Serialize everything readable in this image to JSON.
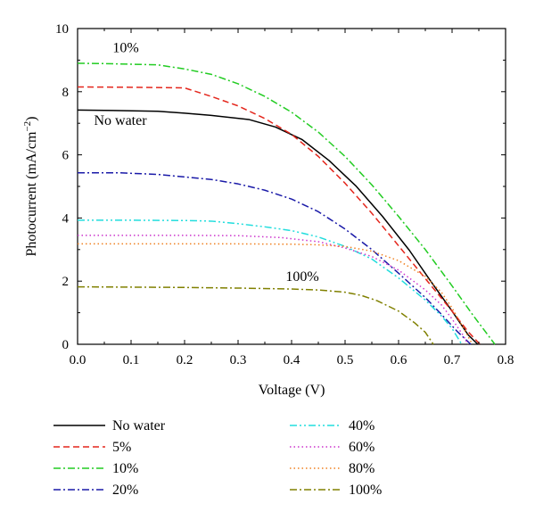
{
  "chart_data": {
    "type": "line",
    "xlabel": "Voltage (V)",
    "ylabel_main": "Photocurrent (mA/cm",
    "ylabel_sup": "−2",
    "ylabel_close": ")",
    "xlim": [
      0,
      0.8
    ],
    "ylim": [
      0,
      10
    ],
    "xticks": [
      0.0,
      0.1,
      0.2,
      0.3,
      0.4,
      0.5,
      0.6,
      0.7,
      0.8
    ],
    "xtick_labels": [
      "0.0",
      "0.1",
      "0.2",
      "0.3",
      "0.4",
      "0.5",
      "0.6",
      "0.7",
      "0.8"
    ],
    "yticks": [
      0,
      2,
      4,
      6,
      8,
      10
    ],
    "ytick_labels": [
      "0",
      "2",
      "4",
      "6",
      "8",
      "10"
    ],
    "grid": false,
    "legend_position": "bottom",
    "annotations": [
      {
        "text": "10%",
        "x": 0.09,
        "y": 9.25
      },
      {
        "text": "No water",
        "x": 0.08,
        "y": 6.95
      },
      {
        "text": "100%",
        "x": 0.42,
        "y": 2.0
      }
    ],
    "series": [
      {
        "name": "No water",
        "color": "#000000",
        "dash": "solid",
        "points": [
          [
            0,
            7.42
          ],
          [
            0.05,
            7.41
          ],
          [
            0.15,
            7.38
          ],
          [
            0.2,
            7.32
          ],
          [
            0.25,
            7.25
          ],
          [
            0.32,
            7.12
          ],
          [
            0.37,
            6.88
          ],
          [
            0.42,
            6.48
          ],
          [
            0.47,
            5.82
          ],
          [
            0.52,
            5.02
          ],
          [
            0.57,
            4.05
          ],
          [
            0.62,
            2.98
          ],
          [
            0.66,
            2.0
          ],
          [
            0.7,
            1.05
          ],
          [
            0.73,
            0.3
          ],
          [
            0.748,
            0
          ]
        ]
      },
      {
        "name": "5%",
        "color": "#e4261c",
        "dash": "dashed",
        "points": [
          [
            0,
            8.15
          ],
          [
            0.1,
            8.14
          ],
          [
            0.2,
            8.12
          ],
          [
            0.25,
            7.85
          ],
          [
            0.3,
            7.55
          ],
          [
            0.35,
            7.15
          ],
          [
            0.4,
            6.65
          ],
          [
            0.45,
            5.95
          ],
          [
            0.5,
            5.1
          ],
          [
            0.55,
            4.15
          ],
          [
            0.6,
            3.12
          ],
          [
            0.65,
            2.08
          ],
          [
            0.7,
            1.05
          ],
          [
            0.73,
            0.4
          ],
          [
            0.752,
            0
          ]
        ]
      },
      {
        "name": "10%",
        "color": "#22cc22",
        "dash": "dashdot",
        "points": [
          [
            0,
            8.9
          ],
          [
            0.05,
            8.89
          ],
          [
            0.15,
            8.85
          ],
          [
            0.2,
            8.72
          ],
          [
            0.25,
            8.55
          ],
          [
            0.3,
            8.25
          ],
          [
            0.35,
            7.85
          ],
          [
            0.4,
            7.35
          ],
          [
            0.45,
            6.72
          ],
          [
            0.5,
            5.95
          ],
          [
            0.55,
            5.05
          ],
          [
            0.6,
            4.05
          ],
          [
            0.65,
            3.0
          ],
          [
            0.7,
            1.85
          ],
          [
            0.74,
            0.9
          ],
          [
            0.78,
            0
          ]
        ]
      },
      {
        "name": "20%",
        "color": "#1a1aa8",
        "dash": "dashdot",
        "points": [
          [
            0,
            5.43
          ],
          [
            0.08,
            5.43
          ],
          [
            0.15,
            5.38
          ],
          [
            0.2,
            5.3
          ],
          [
            0.25,
            5.22
          ],
          [
            0.3,
            5.08
          ],
          [
            0.35,
            4.88
          ],
          [
            0.4,
            4.6
          ],
          [
            0.45,
            4.2
          ],
          [
            0.5,
            3.65
          ],
          [
            0.55,
            3.0
          ],
          [
            0.6,
            2.25
          ],
          [
            0.65,
            1.48
          ],
          [
            0.68,
            0.95
          ],
          [
            0.71,
            0.4
          ],
          [
            0.735,
            0
          ]
        ]
      },
      {
        "name": "40%",
        "color": "#22dddd",
        "dash": "dashdotdot",
        "points": [
          [
            0,
            3.93
          ],
          [
            0.1,
            3.93
          ],
          [
            0.2,
            3.92
          ],
          [
            0.25,
            3.9
          ],
          [
            0.3,
            3.82
          ],
          [
            0.35,
            3.72
          ],
          [
            0.4,
            3.6
          ],
          [
            0.45,
            3.4
          ],
          [
            0.5,
            3.1
          ],
          [
            0.55,
            2.7
          ],
          [
            0.6,
            2.1
          ],
          [
            0.65,
            1.4
          ],
          [
            0.68,
            0.9
          ],
          [
            0.7,
            0.5
          ],
          [
            0.718,
            0
          ]
        ]
      },
      {
        "name": "60%",
        "color": "#cc33cc",
        "dash": "dotted",
        "points": [
          [
            0,
            3.45
          ],
          [
            0.1,
            3.45
          ],
          [
            0.2,
            3.45
          ],
          [
            0.3,
            3.44
          ],
          [
            0.38,
            3.38
          ],
          [
            0.45,
            3.25
          ],
          [
            0.5,
            3.05
          ],
          [
            0.55,
            2.78
          ],
          [
            0.6,
            2.35
          ],
          [
            0.65,
            1.72
          ],
          [
            0.68,
            1.25
          ],
          [
            0.7,
            0.8
          ],
          [
            0.72,
            0.3
          ],
          [
            0.73,
            0
          ]
        ]
      },
      {
        "name": "80%",
        "color": "#f08020",
        "dash": "dotted",
        "points": [
          [
            0,
            3.18
          ],
          [
            0.1,
            3.18
          ],
          [
            0.2,
            3.18
          ],
          [
            0.3,
            3.18
          ],
          [
            0.4,
            3.17
          ],
          [
            0.45,
            3.15
          ],
          [
            0.5,
            3.1
          ],
          [
            0.55,
            2.95
          ],
          [
            0.6,
            2.65
          ],
          [
            0.65,
            2.15
          ],
          [
            0.68,
            1.65
          ],
          [
            0.7,
            1.15
          ],
          [
            0.72,
            0.55
          ],
          [
            0.738,
            0
          ]
        ]
      },
      {
        "name": "100%",
        "color": "#808000",
        "dash": "dashdot",
        "points": [
          [
            0,
            1.82
          ],
          [
            0.1,
            1.81
          ],
          [
            0.2,
            1.8
          ],
          [
            0.3,
            1.78
          ],
          [
            0.4,
            1.75
          ],
          [
            0.45,
            1.72
          ],
          [
            0.5,
            1.65
          ],
          [
            0.53,
            1.55
          ],
          [
            0.56,
            1.38
          ],
          [
            0.6,
            1.05
          ],
          [
            0.63,
            0.68
          ],
          [
            0.65,
            0.38
          ],
          [
            0.665,
            0
          ]
        ]
      }
    ]
  }
}
